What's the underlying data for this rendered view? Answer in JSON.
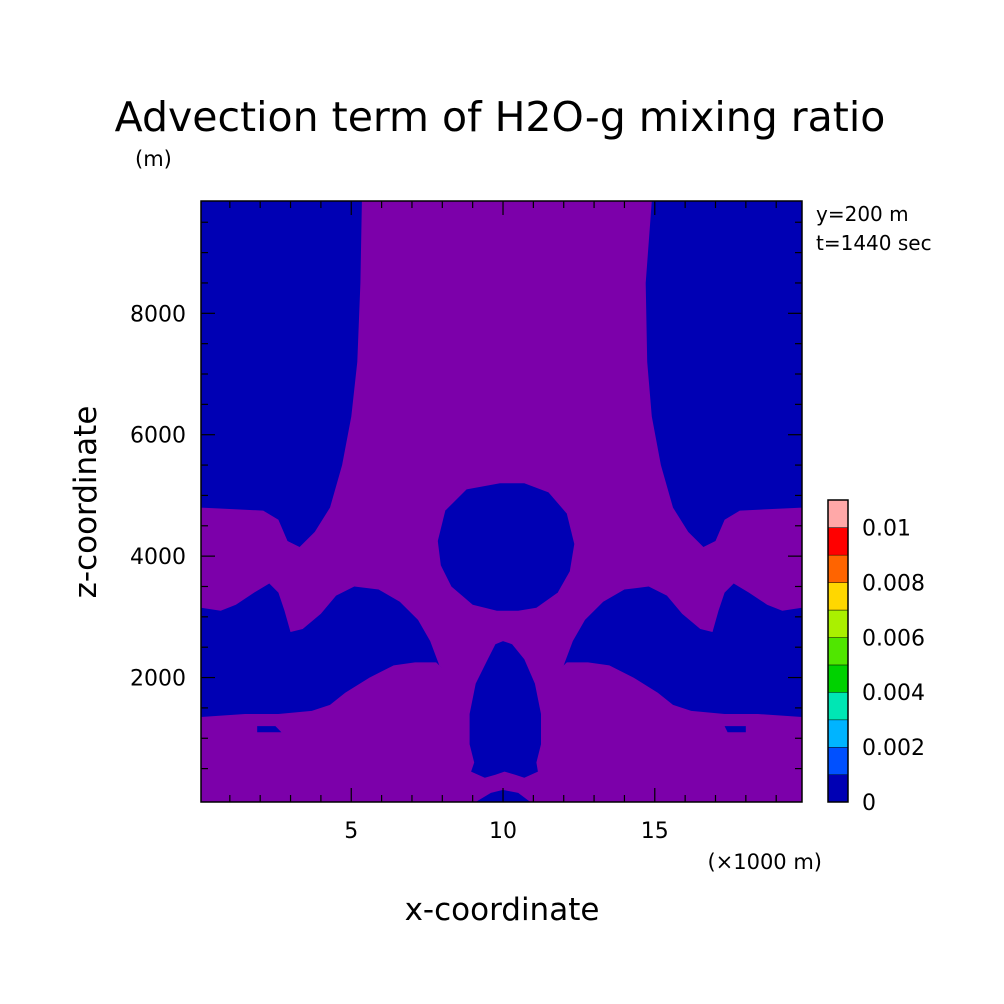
{
  "chart_data": {
    "type": "heatmap",
    "title": "Advection term of H2O-g mixing ratio",
    "unit": "(m)",
    "info": [
      "y=200 m",
      "t=1440 sec"
    ],
    "xlabel": "x-coordinate",
    "ylabel": "z-coordinate",
    "x_unit": "(×1000 m)",
    "xlim": [
      0.05,
      19.85
    ],
    "ylim": [
      -0.05,
      9.85
    ],
    "xticks": [
      {
        "v": 5,
        "label": "5"
      },
      {
        "v": 10,
        "label": "10"
      },
      {
        "v": 15,
        "label": "15"
      }
    ],
    "yticks": [
      {
        "v": 2,
        "label": "2000"
      },
      {
        "v": 4,
        "label": "4000"
      },
      {
        "v": 6,
        "label": "6000"
      },
      {
        "v": 8,
        "label": "8000"
      }
    ],
    "colorbar": {
      "levels": [
        0,
        0.001,
        0.002,
        0.003,
        0.004,
        0.005,
        0.006,
        0.007,
        0.008,
        0.009,
        0.01
      ],
      "colors": [
        "#0000b4",
        "#0050ff",
        "#00b4ff",
        "#00e6b4",
        "#00d200",
        "#50e600",
        "#aaf000",
        "#ffd700",
        "#ff6400",
        "#ff0000",
        "#ffa8a8"
      ],
      "labels": [
        {
          "v": 0,
          "label": "0"
        },
        {
          "v": 0.002,
          "label": "0.002"
        },
        {
          "v": 0.004,
          "label": "0.004"
        },
        {
          "v": 0.006,
          "label": "0.006"
        },
        {
          "v": 0.008,
          "label": "0.008"
        },
        {
          "v": 0.01,
          "label": "0.01"
        }
      ]
    },
    "background_color": "#7c00aa",
    "region_color": "#0000b4",
    "regions": [
      {
        "name": "top-left-region",
        "points": [
          [
            0.05,
            9.85
          ],
          [
            5.35,
            9.85
          ],
          [
            5.3,
            8.5
          ],
          [
            5.2,
            7.2
          ],
          [
            5.0,
            6.3
          ],
          [
            4.7,
            5.5
          ],
          [
            4.3,
            4.8
          ],
          [
            3.8,
            4.4
          ],
          [
            3.3,
            4.15
          ],
          [
            2.9,
            4.25
          ],
          [
            2.6,
            4.6
          ],
          [
            2.1,
            4.75
          ],
          [
            0.05,
            4.8
          ]
        ]
      },
      {
        "name": "top-right-region",
        "points": [
          [
            14.9,
            9.85
          ],
          [
            19.85,
            9.85
          ],
          [
            19.85,
            4.8
          ],
          [
            17.8,
            4.75
          ],
          [
            17.3,
            4.6
          ],
          [
            17.0,
            4.25
          ],
          [
            16.6,
            4.15
          ],
          [
            16.1,
            4.4
          ],
          [
            15.6,
            4.8
          ],
          [
            15.2,
            5.5
          ],
          [
            14.9,
            6.3
          ],
          [
            14.75,
            7.2
          ],
          [
            14.7,
            8.5
          ]
        ]
      },
      {
        "name": "central-upper-blob",
        "points": [
          [
            9.9,
            5.2
          ],
          [
            10.7,
            5.2
          ],
          [
            11.5,
            5.05
          ],
          [
            12.1,
            4.7
          ],
          [
            12.35,
            4.2
          ],
          [
            12.2,
            3.75
          ],
          [
            11.8,
            3.4
          ],
          [
            11.1,
            3.15
          ],
          [
            10.5,
            3.1
          ],
          [
            9.8,
            3.1
          ],
          [
            9.0,
            3.2
          ],
          [
            8.3,
            3.5
          ],
          [
            7.95,
            3.85
          ],
          [
            7.85,
            4.25
          ],
          [
            8.1,
            4.75
          ],
          [
            8.8,
            5.1
          ]
        ]
      },
      {
        "name": "left-middle-band",
        "points": [
          [
            0.05,
            3.15
          ],
          [
            0.7,
            3.1
          ],
          [
            1.2,
            3.2
          ],
          [
            1.8,
            3.4
          ],
          [
            2.3,
            3.55
          ],
          [
            2.6,
            3.4
          ],
          [
            2.8,
            3.1
          ],
          [
            3.0,
            2.75
          ],
          [
            3.4,
            2.8
          ],
          [
            4.0,
            3.05
          ],
          [
            4.5,
            3.35
          ],
          [
            5.1,
            3.5
          ],
          [
            5.9,
            3.45
          ],
          [
            6.6,
            3.25
          ],
          [
            7.2,
            2.95
          ],
          [
            7.6,
            2.6
          ],
          [
            7.9,
            2.2
          ],
          [
            8.0,
            2.15
          ],
          [
            7.8,
            2.25
          ],
          [
            7.1,
            2.25
          ],
          [
            6.4,
            2.2
          ],
          [
            5.6,
            2.0
          ],
          [
            4.8,
            1.75
          ],
          [
            4.3,
            1.55
          ],
          [
            3.7,
            1.45
          ],
          [
            2.6,
            1.4
          ],
          [
            1.5,
            1.4
          ],
          [
            0.05,
            1.35
          ]
        ]
      },
      {
        "name": "right-middle-band",
        "points": [
          [
            19.85,
            3.15
          ],
          [
            19.2,
            3.1
          ],
          [
            18.7,
            3.2
          ],
          [
            18.1,
            3.4
          ],
          [
            17.6,
            3.55
          ],
          [
            17.3,
            3.4
          ],
          [
            17.1,
            3.1
          ],
          [
            16.9,
            2.75
          ],
          [
            16.5,
            2.8
          ],
          [
            15.9,
            3.05
          ],
          [
            15.4,
            3.35
          ],
          [
            14.8,
            3.5
          ],
          [
            14.0,
            3.45
          ],
          [
            13.3,
            3.25
          ],
          [
            12.7,
            2.95
          ],
          [
            12.3,
            2.6
          ],
          [
            12.0,
            2.2
          ],
          [
            11.9,
            2.15
          ],
          [
            12.1,
            2.25
          ],
          [
            12.8,
            2.25
          ],
          [
            13.5,
            2.2
          ],
          [
            14.3,
            2.0
          ],
          [
            15.1,
            1.75
          ],
          [
            15.6,
            1.55
          ],
          [
            16.2,
            1.45
          ],
          [
            17.3,
            1.4
          ],
          [
            18.4,
            1.4
          ],
          [
            19.85,
            1.35
          ]
        ]
      },
      {
        "name": "central-lower-blob",
        "points": [
          [
            10.0,
            2.6
          ],
          [
            10.3,
            2.55
          ],
          [
            10.7,
            2.3
          ],
          [
            11.05,
            1.9
          ],
          [
            11.25,
            1.4
          ],
          [
            11.25,
            0.9
          ],
          [
            11.1,
            0.6
          ],
          [
            11.15,
            0.45
          ],
          [
            10.7,
            0.35
          ],
          [
            10.4,
            0.4
          ],
          [
            10.05,
            0.45
          ],
          [
            9.75,
            0.4
          ],
          [
            9.4,
            0.35
          ],
          [
            8.95,
            0.45
          ],
          [
            9.05,
            0.6
          ],
          [
            8.9,
            0.9
          ],
          [
            8.9,
            1.4
          ],
          [
            9.1,
            1.9
          ],
          [
            9.5,
            2.3
          ],
          [
            9.75,
            2.55
          ]
        ]
      },
      {
        "name": "bottom-center-strip",
        "points": [
          [
            9.1,
            -0.05
          ],
          [
            9.6,
            0.1
          ],
          [
            10.0,
            0.15
          ],
          [
            10.5,
            0.1
          ],
          [
            10.9,
            -0.05
          ]
        ]
      },
      {
        "name": "small-left-patch",
        "points": [
          [
            1.9,
            1.2
          ],
          [
            2.5,
            1.2
          ],
          [
            2.7,
            1.1
          ],
          [
            1.9,
            1.1
          ]
        ]
      },
      {
        "name": "small-right-patch",
        "points": [
          [
            17.3,
            1.2
          ],
          [
            18.0,
            1.2
          ],
          [
            18.0,
            1.1
          ],
          [
            17.4,
            1.1
          ]
        ]
      }
    ]
  }
}
